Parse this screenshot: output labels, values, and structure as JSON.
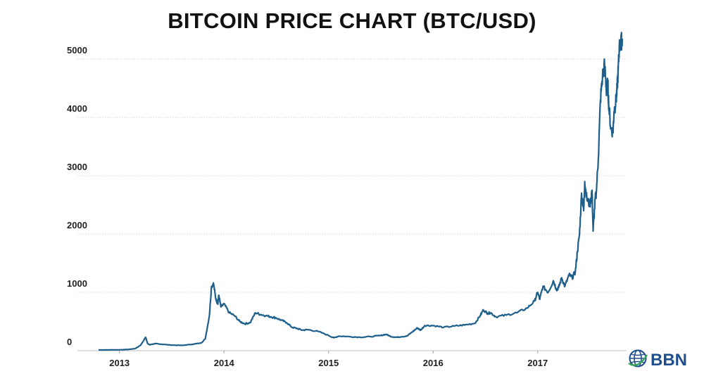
{
  "chart_data": {
    "type": "line",
    "title": "BITCOIN PRICE CHART (BTC/USD)",
    "xlabel": "",
    "ylabel": "",
    "xlim": [
      2012.8,
      2017.85
    ],
    "ylim": [
      0,
      5000
    ],
    "y_ticks": [
      "0",
      "1000",
      "2000",
      "3000",
      "4000",
      "5000"
    ],
    "x_ticks": [
      "2013",
      "2014",
      "2015",
      "2016",
      "2017"
    ],
    "grid": true,
    "legend": "none",
    "line_color": "#1c5f8c",
    "series": [
      {
        "x": [
          2012.8,
          2012.9,
          2013.0,
          2013.08,
          2013.15,
          2013.2,
          2013.23,
          2013.25,
          2013.27,
          2013.29,
          2013.31,
          2013.35,
          2013.4,
          2013.5,
          2013.6,
          2013.7,
          2013.78,
          2013.82,
          2013.86,
          2013.88,
          2013.9,
          2013.92,
          2013.94,
          2013.95,
          2013.97,
          2014.0,
          2014.05,
          2014.1,
          2014.15,
          2014.2,
          2014.25,
          2014.3,
          2014.35,
          2014.4,
          2014.45,
          2014.5,
          2014.55,
          2014.6,
          2014.65,
          2014.7,
          2014.75,
          2014.8,
          2014.9,
          2015.0,
          2015.05,
          2015.1,
          2015.2,
          2015.3,
          2015.4,
          2015.5,
          2015.55,
          2015.6,
          2015.65,
          2015.7,
          2015.75,
          2015.8,
          2015.85,
          2015.88,
          2015.92,
          2016.0,
          2016.1,
          2016.2,
          2016.3,
          2016.4,
          2016.45,
          2016.48,
          2016.52,
          2016.55,
          2016.6,
          2016.7,
          2016.8,
          2016.9,
          2016.97,
          2017.0,
          2017.02,
          2017.05,
          2017.1,
          2017.15,
          2017.18,
          2017.2,
          2017.23,
          2017.26,
          2017.3,
          2017.33,
          2017.36,
          2017.38,
          2017.4,
          2017.42,
          2017.44,
          2017.45,
          2017.47,
          2017.5,
          2017.52,
          2017.53,
          2017.55,
          2017.56,
          2017.58,
          2017.6,
          2017.62,
          2017.64,
          2017.66,
          2017.67,
          2017.68,
          2017.7,
          2017.72,
          2017.73,
          2017.75,
          2017.76,
          2017.77,
          2017.78,
          2017.8,
          2017.81
        ],
        "y": [
          12,
          13,
          15,
          20,
          35,
          90,
          170,
          230,
          120,
          100,
          110,
          120,
          110,
          95,
          90,
          110,
          130,
          200,
          600,
          1100,
          1150,
          900,
          800,
          950,
          750,
          800,
          650,
          600,
          500,
          460,
          480,
          650,
          620,
          600,
          580,
          560,
          520,
          480,
          400,
          380,
          350,
          360,
          330,
          260,
          220,
          250,
          240,
          230,
          240,
          260,
          280,
          240,
          230,
          240,
          250,
          320,
          390,
          350,
          430,
          430,
          400,
          420,
          440,
          470,
          600,
          700,
          640,
          650,
          580,
          610,
          650,
          730,
          850,
          1000,
          880,
          1100,
          1000,
          1200,
          1050,
          1080,
          1250,
          1100,
          1300,
          1250,
          1350,
          1700,
          2000,
          2700,
          2400,
          2900,
          2600,
          2500,
          2750,
          2050,
          2600,
          2700,
          3300,
          4300,
          4700,
          4900,
          4400,
          4600,
          4200,
          3800,
          3750,
          4100,
          4300,
          4500,
          4800,
          5200,
          5300,
          5350
        ]
      }
    ]
  },
  "logo": {
    "text": "BBN",
    "icon": "globe-icon"
  }
}
